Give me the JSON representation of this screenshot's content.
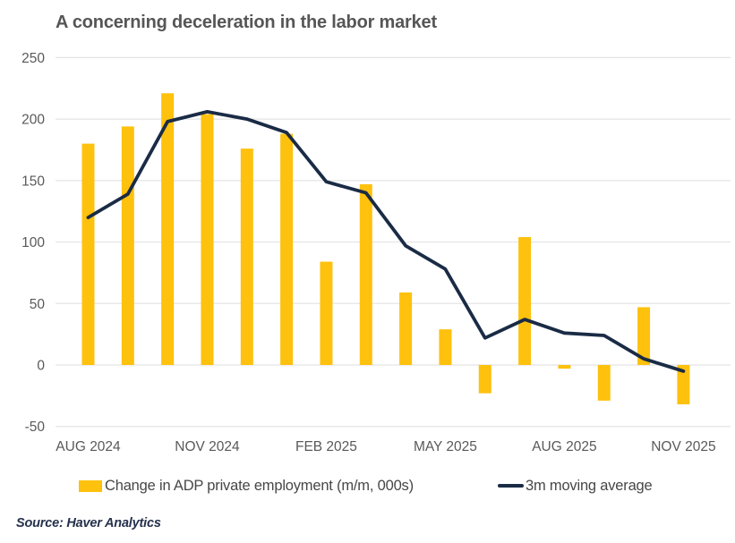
{
  "page": {
    "title": "A concerning deceleration in the labor market",
    "source": "Source: Haver Analytics"
  },
  "colors": {
    "bar": "#FEC10D",
    "line": "#1A2B45",
    "gridline": "#E4E4E4",
    "axis_text": "#595959",
    "title_text": "#565656",
    "legend_text": "#474747",
    "source_text": "#25314D",
    "background": "#FFFFFF"
  },
  "legend": {
    "items": [
      {
        "label": "Change in ADP private employment (m/m, 000s)",
        "swatch": "bar-swatch"
      },
      {
        "label": "3m moving average",
        "swatch": "line-swatch"
      }
    ]
  },
  "chart_data": {
    "type": "bar",
    "title": "A concerning deceleration in the labor market",
    "xlabel": "",
    "ylabel": "",
    "categories": [
      "Aug 2024",
      "Sep 2024",
      "Oct 2024",
      "Nov 2024",
      "Dec 2024",
      "Jan 2025",
      "Feb 2025",
      "Mar 2025",
      "Apr 2025",
      "May 2025",
      "Jun 2025",
      "Jul 2025",
      "Aug 2025",
      "Sep 2025",
      "Oct 2025",
      "Nov 2025"
    ],
    "series": [
      {
        "name": "Change in ADP private employment (m/m, 000s)",
        "type": "bar",
        "color": "#FEC10D",
        "values": [
          180,
          194,
          221,
          204,
          176,
          188,
          84,
          147,
          59,
          29,
          -23,
          104,
          -3,
          -29,
          47,
          -32
        ]
      },
      {
        "name": "3m moving average",
        "type": "line",
        "color": "#1A2B45",
        "values": [
          120,
          139,
          198,
          206,
          200,
          189,
          149,
          140,
          97,
          78,
          22,
          37,
          26,
          24,
          5,
          -5
        ]
      }
    ],
    "x_tick_labels": [
      "AUG 2024",
      "NOV 2024",
      "FEB 2025",
      "MAY 2025",
      "AUG 2025",
      "NOV 2025"
    ],
    "x_tick_indices": [
      0,
      3,
      6,
      9,
      12,
      15
    ],
    "y_ticks": [
      250,
      200,
      150,
      100,
      50,
      0,
      -50
    ],
    "ylim": [
      -50,
      250
    ],
    "grid": "horizontal",
    "legend_position": "bottom",
    "source": "Source: Haver Analytics"
  }
}
